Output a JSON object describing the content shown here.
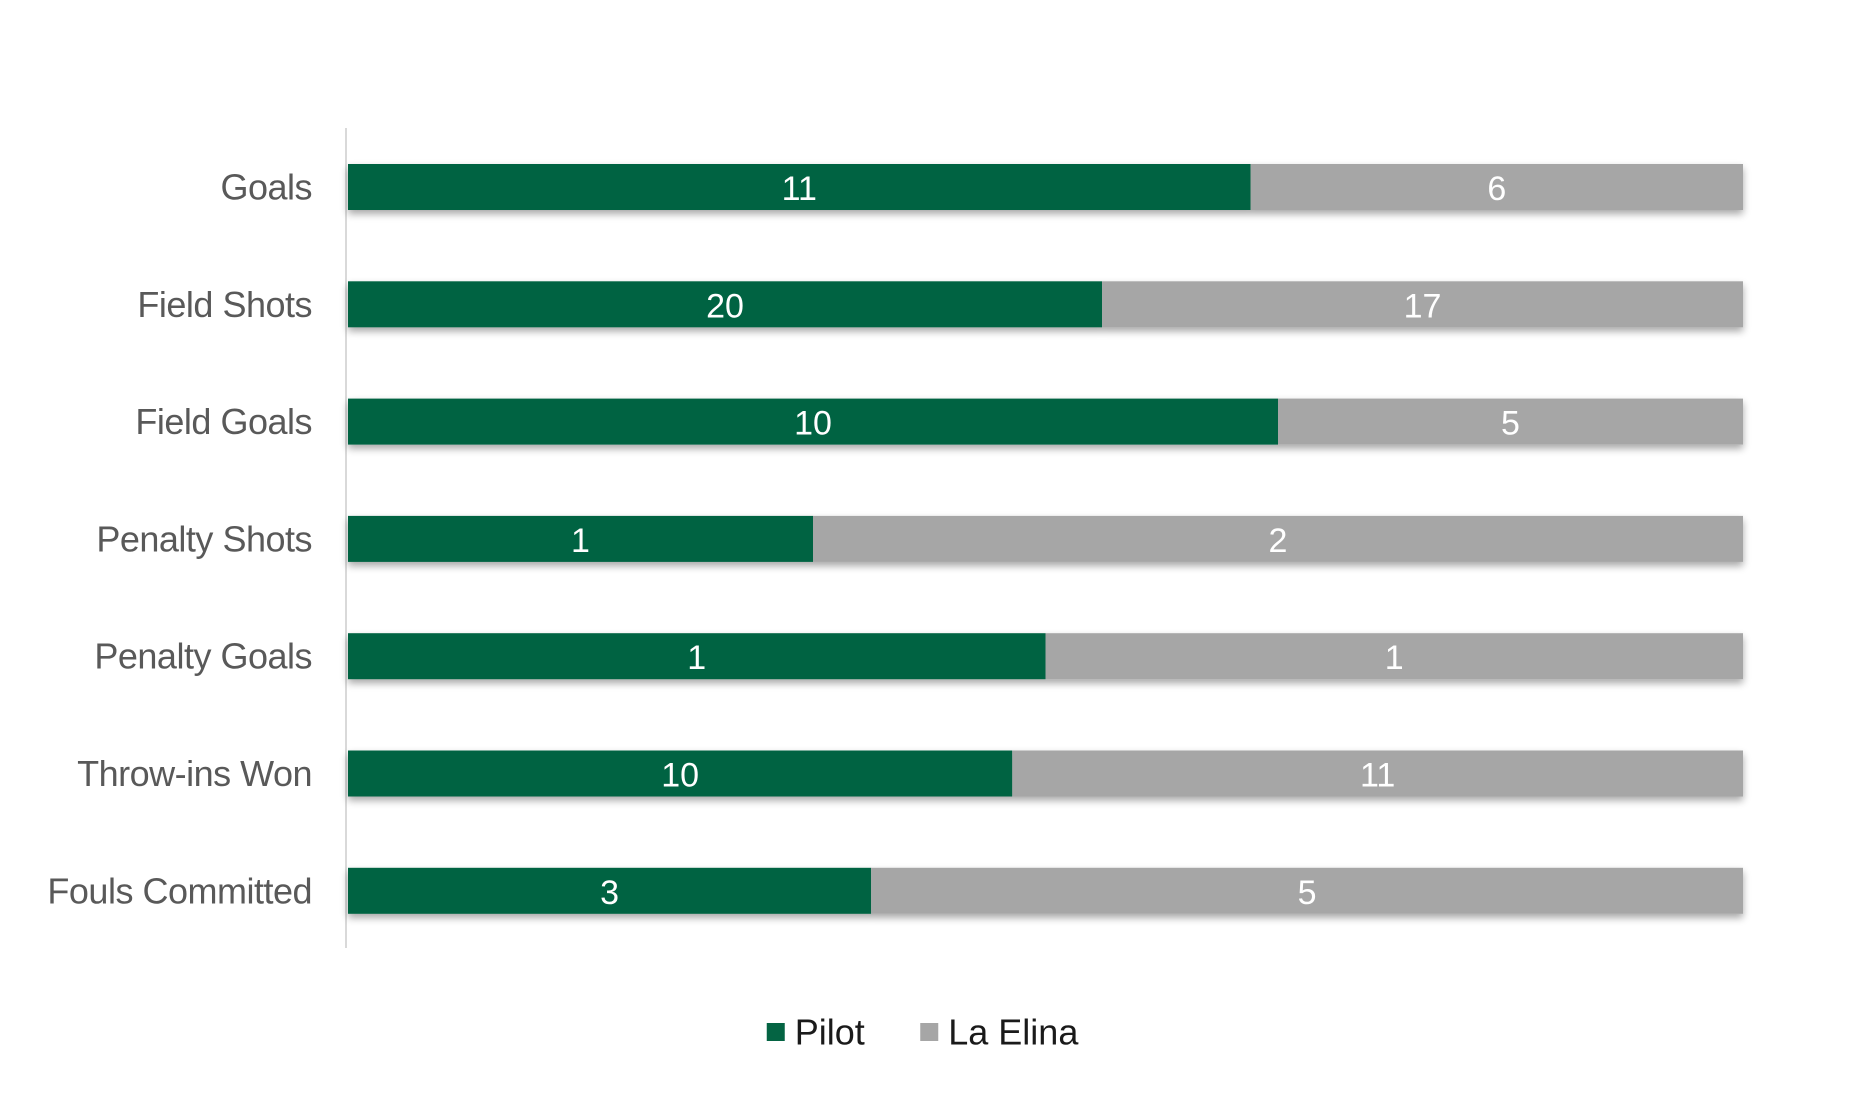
{
  "chart_data": {
    "type": "bar",
    "orientation": "horizontal",
    "stacking": "percent",
    "categories": [
      "Goals",
      "Field Shots",
      "Field Goals",
      "Penalty Shots",
      "Penalty Goals",
      "Throw-ins Won",
      "Fouls Committed"
    ],
    "series": [
      {
        "name": "Pilot",
        "color": "#046443",
        "values": [
          11,
          20,
          10,
          1,
          1,
          10,
          3
        ]
      },
      {
        "name": "La Elina",
        "color": "#a6a6a6",
        "values": [
          6,
          17,
          5,
          2,
          1,
          11,
          5
        ]
      }
    ],
    "xlim": [
      0,
      100
    ],
    "grid": false,
    "legend_position": "bottom-center",
    "data_labels": true
  }
}
